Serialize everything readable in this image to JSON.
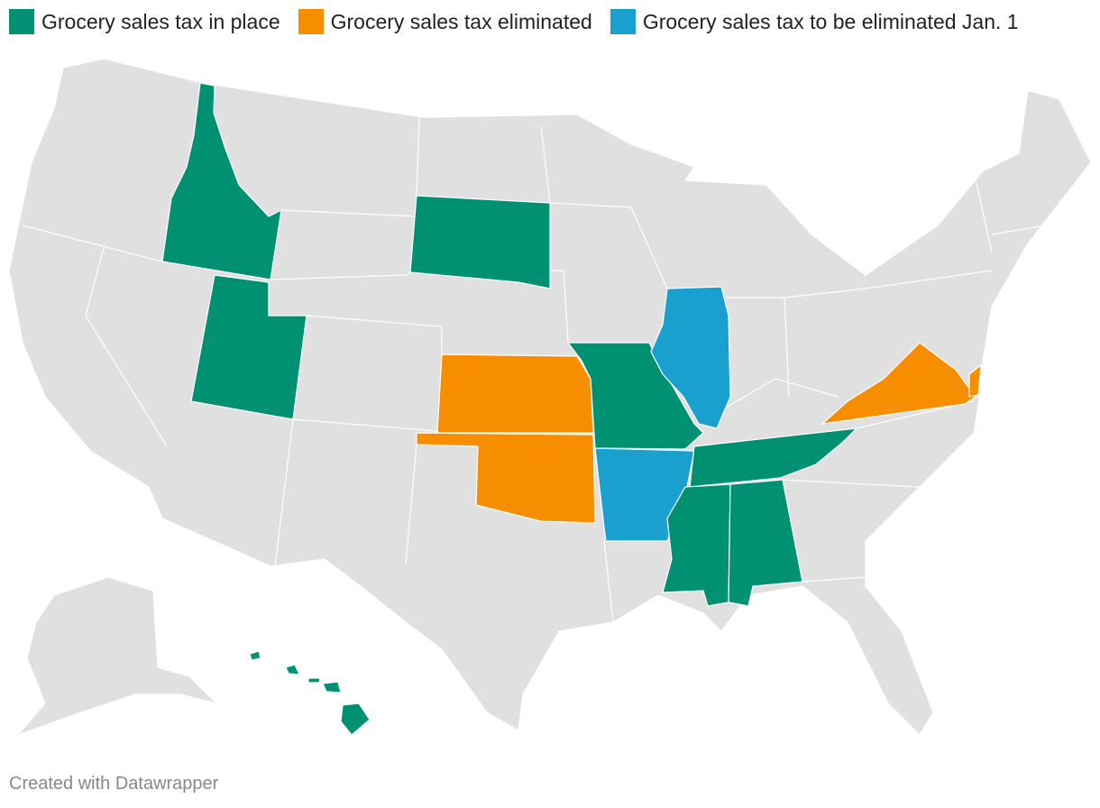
{
  "legend": {
    "items": [
      {
        "label": "Grocery sales tax in place",
        "color": "#009172"
      },
      {
        "label": "Grocery sales tax eliminated",
        "color": "#f78e00"
      },
      {
        "label": "Grocery sales tax to be eliminated Jan. 1",
        "color": "#1aa0cf"
      }
    ]
  },
  "footer": "Created with Datawrapper"
}
